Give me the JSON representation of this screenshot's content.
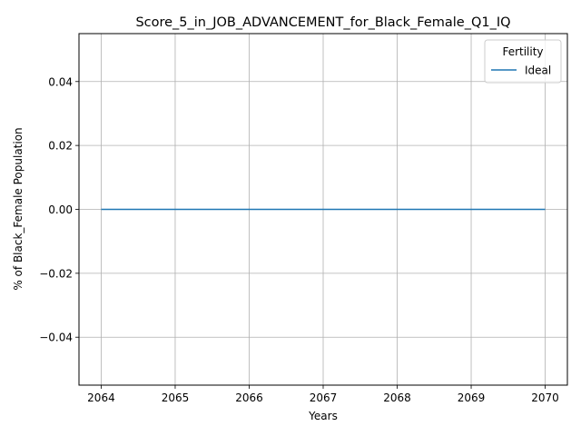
{
  "chart_data": {
    "type": "line",
    "title": "Score_5_in_JOB_ADVANCEMENT_for_Black_Female_Q1_IQ",
    "xlabel": "Years",
    "ylabel": "% of Black_Female Population",
    "x": [
      2064,
      2065,
      2066,
      2067,
      2068,
      2069,
      2070
    ],
    "xticks": [
      2064,
      2065,
      2066,
      2067,
      2068,
      2069,
      2070
    ],
    "yticks": [
      -0.04,
      -0.02,
      0.0,
      0.02,
      0.04
    ],
    "ytick_labels": [
      "−0.04",
      "−0.02",
      "0.00",
      "0.02",
      "0.04"
    ],
    "xlim": [
      2063.7,
      2070.3
    ],
    "ylim": [
      -0.055,
      0.055
    ],
    "grid": true,
    "legend": {
      "title": "Fertility",
      "placement": "top-right"
    },
    "series": [
      {
        "name": "Ideal",
        "color": "#1f77b4",
        "values": [
          0,
          0,
          0,
          0,
          0,
          0,
          0
        ]
      }
    ]
  }
}
